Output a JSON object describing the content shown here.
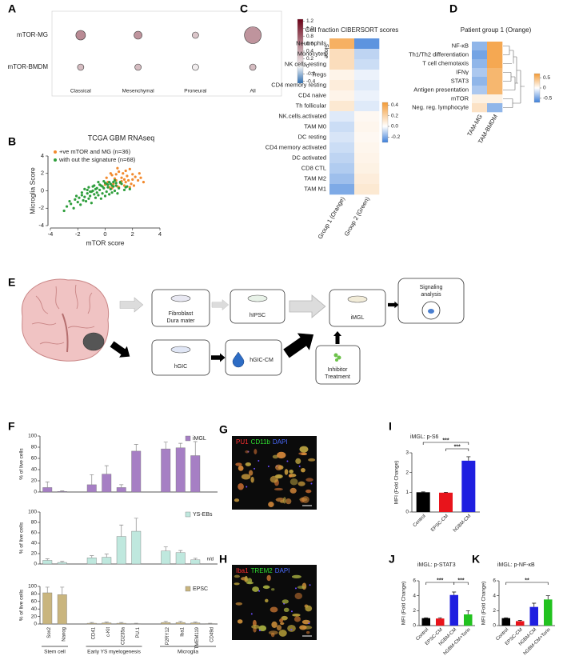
{
  "chart_data": [
    {
      "panel": "A",
      "type": "dot",
      "categories": [
        "Classical",
        "Mesenchymal",
        "Proneural",
        "All"
      ],
      "series": [
        {
          "name": "mTOR-MG",
          "values": [
            0.55,
            0.5,
            0.25,
            0.5
          ],
          "sizes": [
            36,
            25,
            16,
            110
          ]
        },
        {
          "name": "mTOR-BMDM",
          "values": [
            0.3,
            0.3,
            0.05,
            0.3
          ],
          "sizes": [
            16,
            16,
            16,
            16
          ]
        }
      ],
      "colorbar": {
        "title": "Slope",
        "lim": [
          -0.45,
          1.25
        ],
        "ticks": [
          1.2,
          {
            "value": 1,
            "label": "1.0"
          },
          0.8,
          0.6,
          0.4,
          0.2,
          0,
          -0.2,
          -0.4
        ],
        "colormap": [
          "#2b6cb0",
          "#f7f7f7",
          "#6b0016"
        ]
      }
    },
    {
      "panel": "B",
      "type": "scatter",
      "title": "TCGA GBM RNAseq",
      "xlabel": "mTOR score",
      "ylabel": "Microglia Score",
      "xlim": [
        -4,
        4
      ],
      "ylim": [
        -4,
        4
      ],
      "xticks": [
        -4,
        -2,
        0,
        2,
        4
      ],
      "yticks": [
        4,
        2,
        0,
        -2,
        -4
      ],
      "series": [
        {
          "name": "+ve  mTOR and MG (n=36)",
          "color": "#f28a2e",
          "x": [
            0.2,
            0.5,
            0.8,
            1.0,
            1.2,
            1.5,
            1.8,
            2.0,
            2.5,
            2.8,
            0.3,
            0.6,
            0.9,
            1.1,
            1.4,
            1.6,
            1.9,
            2.2,
            0.1,
            0.4,
            0.7,
            1.3,
            1.7,
            2.1,
            2.4,
            0.0,
            0.5,
            0.8,
            1.0,
            1.2,
            1.5,
            1.8,
            2.0,
            2.6,
            0.9,
            1.4
          ],
          "y": [
            1.0,
            1.8,
            1.2,
            2.2,
            1.5,
            1.0,
            2.5,
            1.3,
            2.0,
            1.0,
            0.4,
            0.8,
            0.5,
            0.9,
            0.6,
            1.7,
            0.8,
            1.6,
            1.5,
            2.0,
            1.4,
            2.0,
            1.2,
            0.6,
            1.2,
            0.7,
            0.3,
            1.9,
            0.4,
            1.1,
            2.3,
            0.4,
            1.9,
            1.5,
            2.6,
            1.3
          ]
        },
        {
          "name": "with out the signature (n=68)",
          "color": "#2e9e3c",
          "x": [
            -3.0,
            -2.8,
            -2.5,
            -2.3,
            -2.2,
            -2.0,
            -1.9,
            -1.8,
            -1.7,
            -1.6,
            -1.5,
            -1.4,
            -1.3,
            -1.2,
            -1.1,
            -1.0,
            -0.9,
            -0.8,
            -0.7,
            -0.6,
            -0.5,
            -0.4,
            -0.3,
            -0.2,
            -0.1,
            0.0,
            0.1,
            0.2,
            0.3,
            0.4,
            0.5,
            0.6,
            0.7,
            0.8,
            0.9,
            1.0,
            1.2,
            1.4,
            1.6,
            1.8,
            -1.5,
            -1.2,
            -1.0,
            -0.8,
            -0.6,
            -0.4,
            -0.2,
            0.0,
            0.2,
            0.4,
            0.6,
            0.8,
            -2.1,
            -1.7,
            -1.3,
            -0.9,
            -0.5,
            -0.1,
            0.3,
            0.7,
            -1.1,
            -0.7,
            -0.3,
            0.1,
            0.5,
            1.1,
            -2.6,
            1.5
          ],
          "y": [
            -2.3,
            -1.8,
            -1.5,
            -2.0,
            -1.0,
            -1.3,
            -0.8,
            -1.6,
            -0.5,
            -1.1,
            -0.7,
            -1.2,
            -0.3,
            -0.9,
            -0.6,
            -1.4,
            0.0,
            -0.4,
            -0.8,
            -0.2,
            -0.5,
            0.1,
            -0.9,
            -0.3,
            0.3,
            -0.6,
            -0.1,
            0.4,
            -0.4,
            0.2,
            -0.2,
            0.5,
            0.0,
            0.6,
            -0.3,
            0.3,
            0.8,
            0.1,
            0.5,
            0.2,
            0.2,
            0.4,
            -0.1,
            0.6,
            0.3,
            0.7,
            0.5,
            0.9,
            0.7,
            0.8,
            1.0,
            0.9,
            -0.6,
            -0.2,
            0.1,
            0.5,
            1.0,
            1.1,
            1.0,
            1.2,
            -0.1,
            0.2,
            0.6,
            0.8,
            0.6,
            1.0,
            -1.2,
            0.4
          ]
        }
      ]
    },
    {
      "panel": "C",
      "type": "heatmap",
      "title": "Cell fraction CIBERSORT scores",
      "categories": [
        "Group 1 (Orange)",
        "Group 2 (Green)"
      ],
      "series": [
        {
          "name": "Neutrophils",
          "values": [
            0.35,
            -0.25
          ]
        },
        {
          "name": "Monocytes",
          "values": [
            0.15,
            -0.1
          ]
        },
        {
          "name": "NK cells resting",
          "values": [
            0.15,
            -0.08
          ]
        },
        {
          "name": "Tregs",
          "values": [
            0.05,
            -0.03
          ]
        },
        {
          "name": "CD4 memory resting",
          "values": [
            0.08,
            -0.05
          ]
        },
        {
          "name": "CD4 naive",
          "values": [
            0.05,
            -0.03
          ]
        },
        {
          "name": "Th follicular",
          "values": [
            0.1,
            -0.05
          ]
        },
        {
          "name": "NK.cells.activated",
          "values": [
            -0.05,
            0.03
          ]
        },
        {
          "name": "TAM M0",
          "values": [
            -0.08,
            0.04
          ]
        },
        {
          "name": "DC resting",
          "values": [
            -0.06,
            0.03
          ]
        },
        {
          "name": "CD4 memory activated",
          "values": [
            -0.08,
            0.04
          ]
        },
        {
          "name": "DC activated",
          "values": [
            -0.1,
            0.05
          ]
        },
        {
          "name": "CD8 CTL",
          "values": [
            -0.12,
            0.06
          ]
        },
        {
          "name": "TAM M2",
          "values": [
            -0.15,
            0.08
          ]
        },
        {
          "name": "TAM M1",
          "values": [
            -0.2,
            0.1
          ]
        }
      ],
      "colorbar": {
        "lim": [
          -0.3,
          0.45
        ],
        "ticks": [
          0.4,
          0.2,
          {
            "value": 0,
            "label": "0.0"
          },
          -0.2
        ],
        "colormap": [
          "#3d7fd9",
          "#ffffff",
          "#f39a35"
        ]
      }
    },
    {
      "panel": "D",
      "type": "heatmap",
      "title": "Patient group 1 (Orange)",
      "categories": [
        "TAM-MG",
        "TAM-BMDM"
      ],
      "series": [
        {
          "name": "NF-κB",
          "values": [
            -0.4,
            0.6
          ]
        },
        {
          "name": "Th1/Th2 differentiation",
          "values": [
            -0.5,
            0.6
          ]
        },
        {
          "name": "T cell chemotaxis",
          "values": [
            -0.4,
            0.6
          ]
        },
        {
          "name": "IFNγ",
          "values": [
            -0.3,
            0.5
          ]
        },
        {
          "name": "STAT3",
          "values": [
            -0.4,
            0.5
          ]
        },
        {
          "name": "Antigen presentation",
          "values": [
            -0.3,
            0.5
          ]
        },
        {
          "name": "mTOR",
          "values": [
            0.1,
            0.1
          ]
        },
        {
          "name": "Neg. reg. lymphocyte",
          "values": [
            0.2,
            -0.4
          ]
        }
      ],
      "colorbar": {
        "lim": [
          -0.7,
          0.7
        ],
        "ticks": [
          0.5,
          0,
          -0.5
        ],
        "colormap": [
          "#3d7fd9",
          "#ffffff",
          "#f39a35"
        ]
      }
    },
    {
      "panel": "F",
      "type": "bar",
      "name": "iMGL",
      "color": "#a67fc4",
      "ylabel": "% of live cells",
      "categories": [
        "Sox2",
        "Nanog",
        null,
        "CD41",
        "c-Kit",
        "CD235a",
        "PU.1",
        null,
        "P2RY12",
        "Iba1",
        "TMEM119",
        "CD49d"
      ],
      "values": [
        8,
        1,
        null,
        13,
        32,
        8,
        73,
        null,
        77,
        79,
        65,
        null
      ],
      "errors": [
        10,
        1,
        null,
        18,
        15,
        5,
        12,
        null,
        12,
        8,
        25,
        null
      ],
      "ylim": [
        0,
        100
      ],
      "yticks": [
        0,
        20,
        40,
        60,
        80,
        100
      ]
    },
    {
      "type": "bar",
      "name": "YS-EBs",
      "color": "#bfe8de",
      "ylabel": "% of live cells",
      "categories": [
        "Sox2",
        "Nanog",
        null,
        "CD41",
        "c-Kit",
        "CD235a",
        "PU.1",
        null,
        "P2RY12",
        "Iba1",
        "TMEM119",
        "CD49d"
      ],
      "values": [
        7,
        3,
        null,
        12,
        13,
        53,
        63,
        null,
        25,
        22,
        8,
        null
      ],
      "errors": [
        3,
        2,
        null,
        4,
        6,
        22,
        25,
        null,
        8,
        4,
        3,
        null
      ],
      "ylim": [
        0,
        100
      ],
      "yticks": [
        0,
        20,
        40,
        60,
        80,
        100
      ],
      "annotations": [
        "n/d"
      ]
    },
    {
      "type": "bar",
      "name": "EPSC",
      "color": "#c9b57e",
      "ylabel": "% of live cells",
      "categories": [
        "Sox2",
        "Nanog",
        null,
        "CD41",
        "c-Kit",
        "CD235a",
        "PU.1",
        null,
        "P2RY12",
        "Iba1",
        "TMEM119",
        "CD49d"
      ],
      "values": [
        83,
        78,
        null,
        2,
        3,
        2,
        1,
        null,
        4,
        4,
        3,
        1
      ],
      "errors": [
        15,
        20,
        null,
        2,
        2,
        2,
        1,
        null,
        3,
        3,
        2,
        1
      ],
      "ylim": [
        0,
        100
      ],
      "yticks": [
        0,
        20,
        40,
        60,
        80,
        100
      ],
      "groups": [
        "Stem cell",
        "Early YS myelogenesis",
        "Microglia"
      ]
    },
    {
      "panel": "I",
      "type": "bar",
      "title": "iMGL: p-S6",
      "ylabel": "MFI (Fold Change)",
      "categories": [
        "Control",
        "EPSC-CM",
        "hGBM-CM"
      ],
      "colors": [
        "#000000",
        "#e8141b",
        "#1f1fe0"
      ],
      "values": [
        1,
        0.98,
        2.6
      ],
      "errors": [
        0.02,
        0.02,
        0.2
      ],
      "ylim": [
        0,
        3
      ],
      "yticks": [
        0,
        1,
        2,
        3
      ],
      "annotations": [
        "***",
        "***"
      ]
    },
    {
      "panel": "J",
      "type": "bar",
      "title": "iMGL: p-STAT3",
      "ylabel": "MFI (Fold Change)",
      "categories": [
        "Control",
        "EPSC-CM",
        "hGBM-CM",
        "hGBM-CM+Torin"
      ],
      "colors": [
        "#000000",
        "#e8141b",
        "#1f1fe0",
        "#22c21f"
      ],
      "values": [
        1,
        0.95,
        4.1,
        1.5
      ],
      "errors": [
        0.05,
        0.1,
        0.4,
        0.5
      ],
      "ylim": [
        0,
        6
      ],
      "yticks": [
        0,
        2,
        4,
        6
      ],
      "annotations": [
        "***",
        "***"
      ]
    },
    {
      "panel": "K",
      "type": "bar",
      "title": "iMGL: p-NF-κB",
      "ylabel": "MFI (Fold Change)",
      "categories": [
        "Control",
        "EPSC-CM",
        "hGBM-CM",
        "hGBM-CM+Torin"
      ],
      "colors": [
        "#000000",
        "#e8141b",
        "#1f1fe0",
        "#22c21f"
      ],
      "values": [
        1,
        0.6,
        2.5,
        3.5
      ],
      "errors": [
        0.05,
        0.1,
        0.5,
        0.5
      ],
      "ylim": [
        0,
        6
      ],
      "yticks": [
        0,
        2,
        4,
        6
      ],
      "annotations": [
        "**"
      ]
    }
  ],
  "diagram": {
    "panel": "E",
    "nodes": [
      {
        "lines": [
          "Fibroblast",
          "Dura mater"
        ]
      },
      {
        "lines": [
          "hIPSC"
        ]
      },
      {
        "lines": [
          "iMGL"
        ]
      },
      {
        "lines": [
          "Signaling",
          "analysis"
        ]
      },
      {
        "lines": [
          "hGIC"
        ]
      },
      {
        "lines": [
          "hGIC-CM"
        ]
      },
      {
        "lines": [
          "Inhibitor",
          "Treatment"
        ]
      }
    ]
  },
  "images": [
    {
      "panel": "G",
      "stains": [
        {
          "text": "PU1",
          "color": "#ff3030"
        },
        {
          "text": "CD11b",
          "color": "#30e030"
        },
        {
          "text": "DAPI",
          "color": "#4a6bff"
        }
      ]
    },
    {
      "panel": "H",
      "stains": [
        {
          "text": "Iba1",
          "color": "#ff3030"
        },
        {
          "text": "TREM2",
          "color": "#30e030"
        },
        {
          "text": "DAPI",
          "color": "#4a6bff"
        }
      ]
    }
  ]
}
